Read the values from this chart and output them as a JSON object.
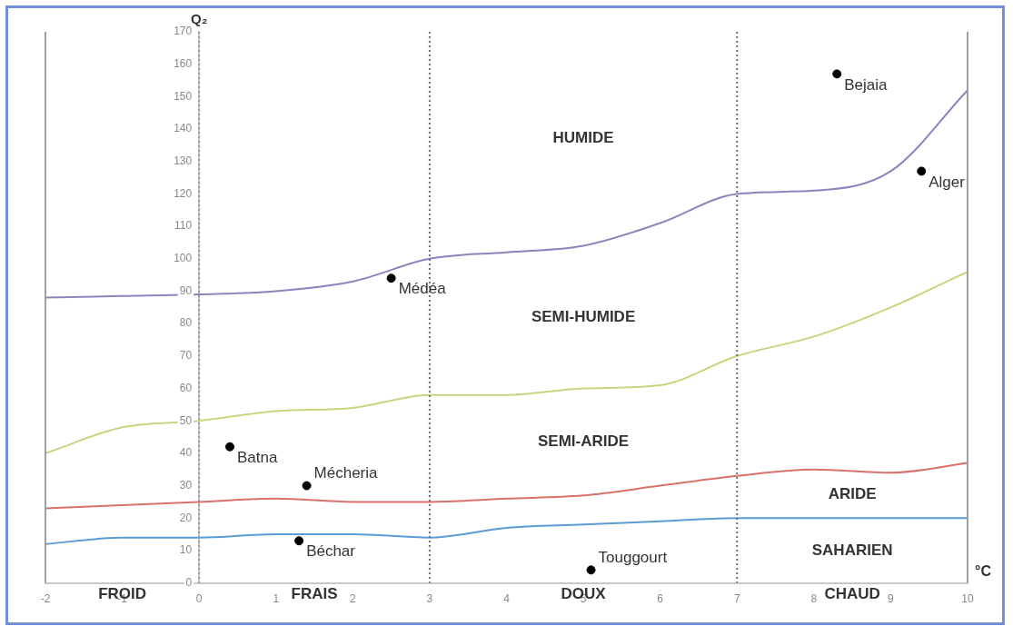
{
  "chart_data": {
    "type": "line",
    "xlabel": "°C",
    "ylabel": "Q₂",
    "x": [
      -2,
      -1,
      0,
      1,
      2,
      3,
      4,
      5,
      6,
      7,
      8,
      9,
      10
    ],
    "xlim": [
      -2,
      10
    ],
    "xticks": [
      -2,
      -1,
      0,
      1,
      2,
      3,
      4,
      5,
      6,
      7,
      8,
      9,
      10
    ],
    "ylim": [
      0,
      170
    ],
    "yticks": [
      0,
      10,
      20,
      30,
      40,
      50,
      60,
      70,
      80,
      90,
      100,
      110,
      120,
      130,
      140,
      150,
      160,
      170
    ],
    "grid": false,
    "legend": false,
    "series": [
      {
        "color": "#8e84bd",
        "marker": "none",
        "line_style": "solid",
        "values": [
          88,
          88.5,
          89,
          90,
          93,
          100,
          102,
          104,
          111,
          120,
          121,
          127,
          152
        ]
      },
      {
        "color": "#c4d67e",
        "marker": "none",
        "line_style": "solid",
        "values": [
          40,
          48,
          50,
          53,
          54,
          58,
          58,
          60,
          61,
          70,
          76,
          85,
          96
        ]
      },
      {
        "color": "#d9716b",
        "marker": "none",
        "line_style": "solid",
        "values": [
          23,
          24,
          25,
          26,
          25,
          25,
          26,
          27,
          30,
          33,
          35,
          34,
          37
        ]
      },
      {
        "color": "#5b9bd5",
        "marker": "none",
        "line_style": "solid",
        "values": [
          12,
          14,
          14,
          15,
          15,
          14,
          17,
          18,
          19,
          20,
          20,
          20,
          20
        ]
      },
      {
        "type": "scatter",
        "name": "Bejaia",
        "color": "#000000",
        "marker": "circle",
        "x": [
          8.3
        ],
        "values": [
          157
        ]
      },
      {
        "type": "scatter",
        "name": "Alger",
        "color": "#000000",
        "marker": "circle",
        "x": [
          9.4
        ],
        "values": [
          127
        ]
      },
      {
        "type": "scatter",
        "name": "Médéa",
        "color": "#000000",
        "marker": "circle",
        "x": [
          2.5
        ],
        "values": [
          94
        ]
      },
      {
        "type": "scatter",
        "name": "Batna",
        "color": "#000000",
        "marker": "circle",
        "x": [
          0.4
        ],
        "values": [
          42
        ]
      },
      {
        "type": "scatter",
        "name": "Mécheria",
        "color": "#000000",
        "marker": "circle",
        "x": [
          1.4
        ],
        "values": [
          30
        ]
      },
      {
        "type": "scatter",
        "name": "Béchar",
        "color": "#000000",
        "marker": "circle",
        "x": [
          1.3
        ],
        "values": [
          13
        ]
      },
      {
        "type": "scatter",
        "name": "Touggourt",
        "color": "#000000",
        "marker": "circle",
        "x": [
          5.1
        ],
        "values": [
          4
        ]
      }
    ],
    "ref_lines": [
      {
        "axis": "x",
        "value": 0,
        "color": "#9a9a9a",
        "line_style": "dotted"
      },
      {
        "axis": "x",
        "value": 3,
        "color": "#6a6a8a",
        "line_style": "dotted"
      },
      {
        "axis": "x",
        "value": 7,
        "color": "#6a6a8a",
        "line_style": "dotted"
      }
    ],
    "annotations": [
      "HUMIDE",
      "SEMI-HUMIDE",
      "SEMI-ARIDE",
      "ARIDE",
      "SAHARIEN",
      "FROID",
      "FRAIS",
      "DOUX",
      "CHAUD"
    ]
  }
}
